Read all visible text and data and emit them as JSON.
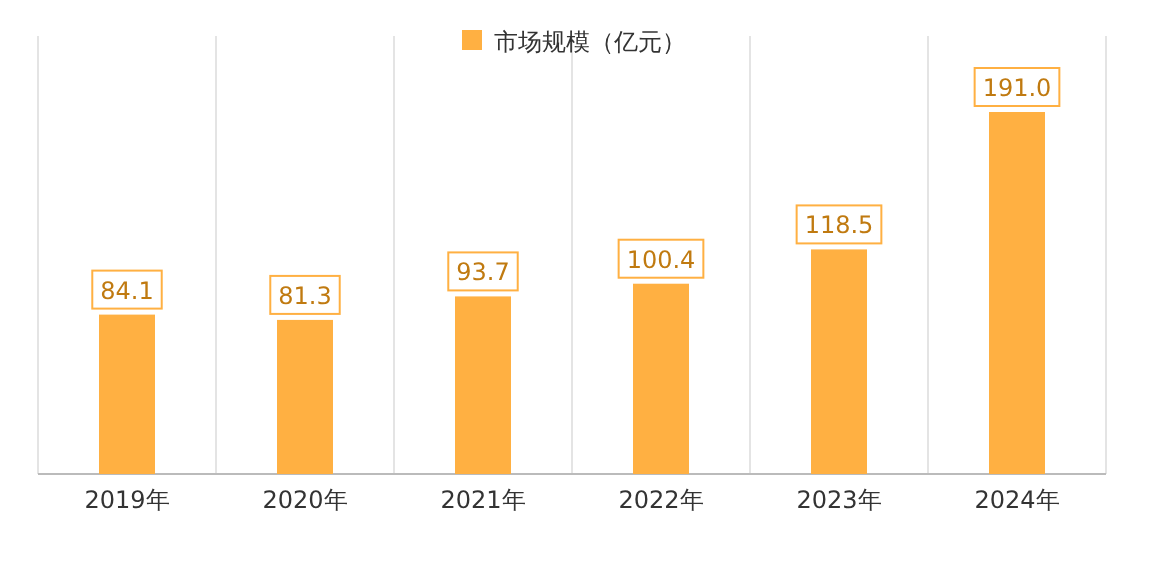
{
  "chart_data": {
    "type": "bar",
    "categories": [
      "2019年",
      "2020年",
      "2021年",
      "2022年",
      "2023年",
      "2024年"
    ],
    "series": [
      {
        "name": "市场规模（亿元）",
        "color": "#ffb042",
        "values": [
          84.1,
          81.3,
          93.7,
          100.4,
          118.5,
          191.0
        ],
        "value_labels": [
          "84.1",
          "81.3",
          "93.7",
          "100.4",
          "118.5",
          "191.0"
        ]
      }
    ],
    "legend": "top",
    "grid": "x"
  }
}
